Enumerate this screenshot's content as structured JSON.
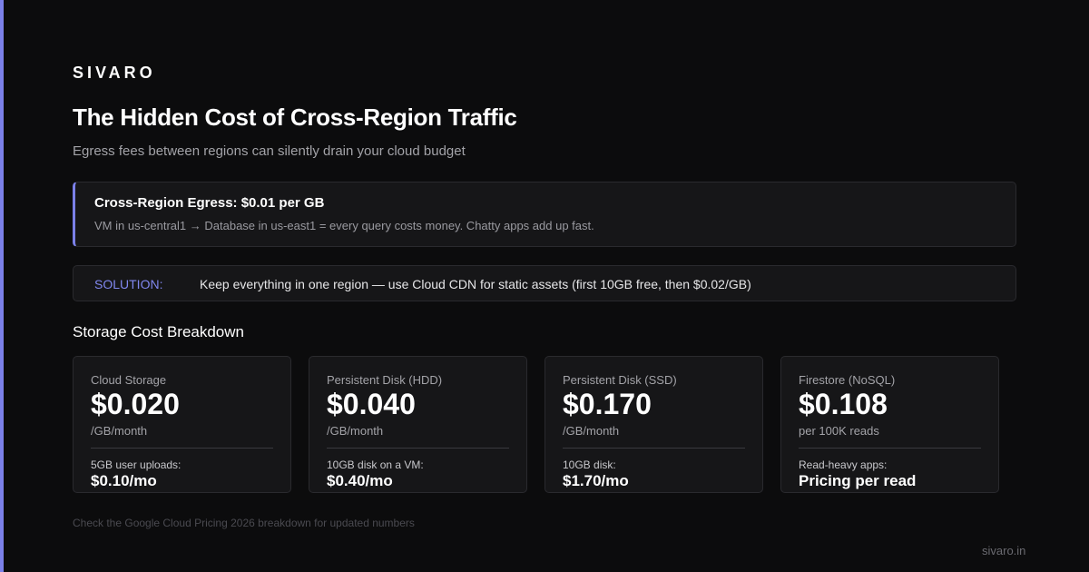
{
  "brand": "SIVARO",
  "header": {
    "title": "The Hidden Cost of Cross-Region Traffic",
    "subtitle": "Egress fees between regions can silently drain your cloud budget"
  },
  "callout": {
    "title": "Cross-Region Egress: $0.01 per GB",
    "text": "VM in us-central1 → Database in us-east1 = every query costs money. Chatty apps add up fast."
  },
  "solution": {
    "label": "SOLUTION:",
    "text": "Keep everything in one region — use Cloud CDN for static assets (first 10GB free, then $0.02/GB)"
  },
  "section_title": "Storage Cost Breakdown",
  "cards": [
    {
      "name": "Cloud Storage",
      "price": "$0.020",
      "unit": "/GB/month",
      "example_label": "5GB user uploads:",
      "example_value": "$0.10/mo"
    },
    {
      "name": "Persistent Disk (HDD)",
      "price": "$0.040",
      "unit": "/GB/month",
      "example_label": "10GB disk on a VM:",
      "example_value": "$0.40/mo"
    },
    {
      "name": "Persistent Disk (SSD)",
      "price": "$0.170",
      "unit": "/GB/month",
      "example_label": "10GB disk:",
      "example_value": "$1.70/mo"
    },
    {
      "name": "Firestore (NoSQL)",
      "price": "$0.108",
      "unit": "per 100K reads",
      "example_label": "Read-heavy apps:",
      "example_value": "Pricing per read"
    }
  ],
  "footnote": "Check the Google Cloud Pricing 2026 breakdown for updated numbers",
  "site": "sivaro.in"
}
